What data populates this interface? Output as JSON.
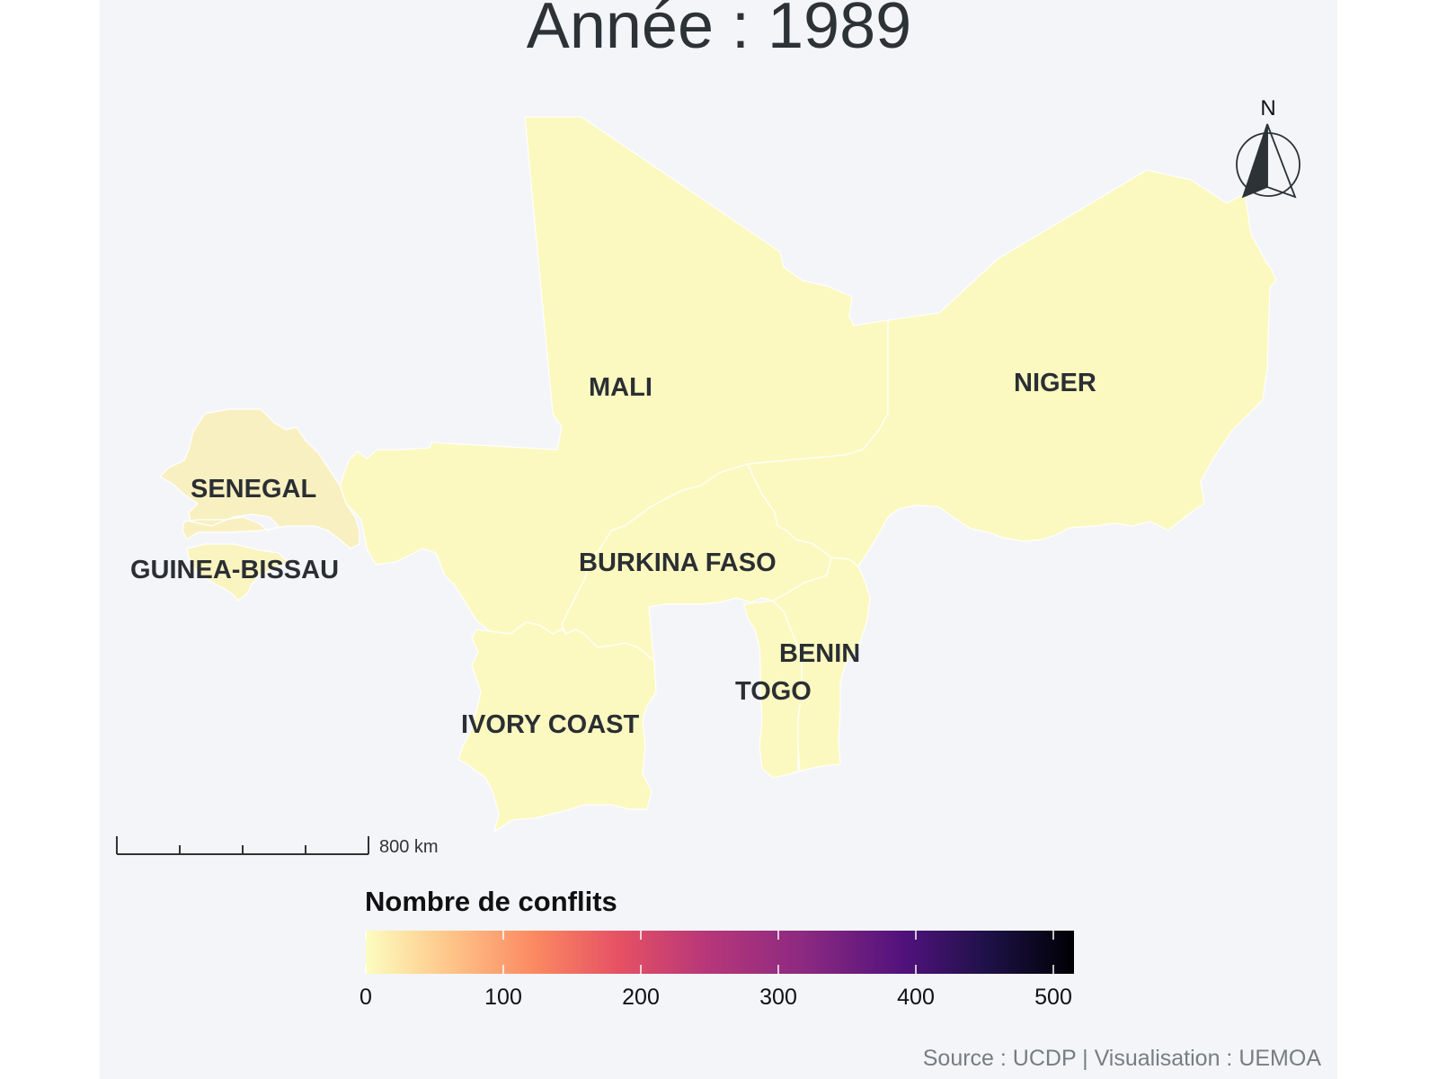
{
  "title": "Année : 1989",
  "countries": [
    {
      "id": "mali",
      "label": "MALI",
      "color": "#fbf9c0"
    },
    {
      "id": "niger",
      "label": "NIGER",
      "color": "#fbf9c0"
    },
    {
      "id": "senegal",
      "label": "SENEGAL",
      "color": "#f9f0c1"
    },
    {
      "id": "guinea-bissau",
      "label": "GUINEA-BISSAU",
      "color": "#faf4c0"
    },
    {
      "id": "burkina-faso",
      "label": "BURKINA FASO",
      "color": "#fbf9c0"
    },
    {
      "id": "ivory-coast",
      "label": "IVORY COAST",
      "color": "#fbf9c0"
    },
    {
      "id": "togo",
      "label": "TOGO",
      "color": "#fbf9c0"
    },
    {
      "id": "benin",
      "label": "BENIN",
      "color": "#fbf9c0"
    }
  ],
  "north_arrow": {
    "label": "N",
    "icon": "north-arrow-icon"
  },
  "scale_bar": {
    "label": "800 km"
  },
  "legend": {
    "title": "Nombre de conflits",
    "ticks": [
      "0",
      "100",
      "200",
      "300",
      "400",
      "500"
    ],
    "colors": [
      "#fcfdbf",
      "#fd9f6c",
      "#f0605d",
      "#b73779",
      "#721f81",
      "#2c115f",
      "#000004"
    ]
  },
  "source": "Source : UCDP | Visualisation : UEMOA"
}
